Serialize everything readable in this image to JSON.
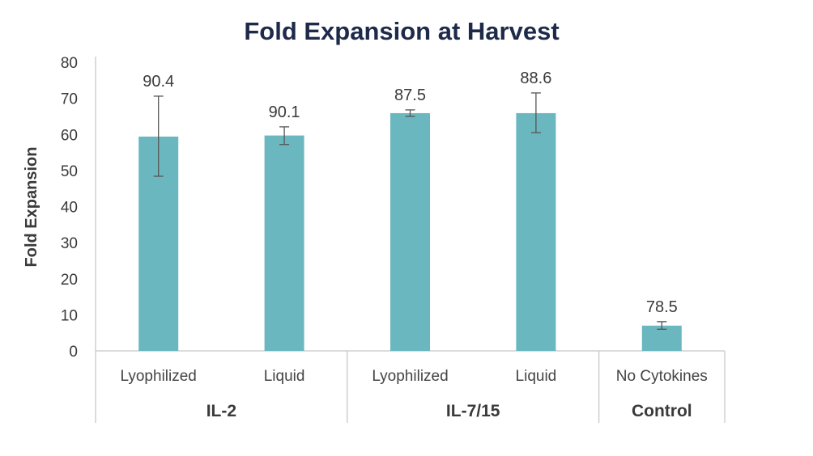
{
  "chart_data": {
    "type": "bar",
    "title": "Fold Expansion at Harvest",
    "xlabel": "",
    "ylabel": "Fold Expansion",
    "ylim": [
      0,
      80
    ],
    "yticks": [
      0,
      10,
      20,
      30,
      40,
      50,
      60,
      70,
      80
    ],
    "grid": false,
    "legend": "none",
    "bar_color": "#6bb7c0",
    "categories": [
      "Lyophilized",
      "Liquid",
      "Lyophilized",
      "Liquid",
      "No Cytokines"
    ],
    "groups": [
      {
        "label": "IL-2",
        "span": 2
      },
      {
        "label": "IL-7/15",
        "span": 2
      },
      {
        "label": "Control",
        "span": 1
      }
    ],
    "values": [
      59.4,
      59.7,
      65.9,
      65.9,
      7.0
    ],
    "error_low": [
      48.4,
      57.2,
      65.0,
      60.5,
      6.0
    ],
    "error_high": [
      70.6,
      62.1,
      66.8,
      71.5,
      8.1
    ],
    "data_labels": [
      "90.4",
      "90.1",
      "87.5",
      "88.6",
      "78.5"
    ]
  }
}
